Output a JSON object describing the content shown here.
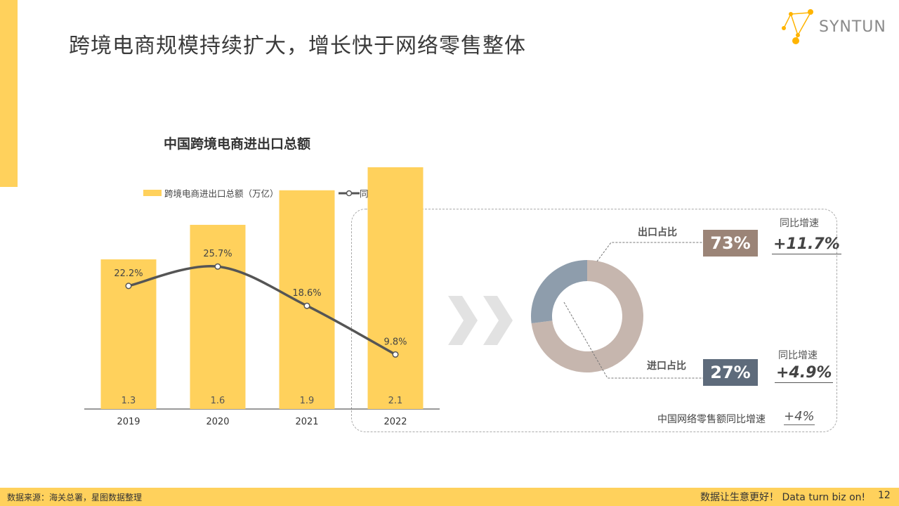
{
  "page": {
    "title": "跨境电商规模持续扩大，增长快于网络零售整体",
    "logo_text": "SYNTUN",
    "source": "数据来源：海关总署，星图数据整理",
    "slogan": "数据让生意更好！ Data  turn  biz  on!",
    "page_number": "12"
  },
  "colors": {
    "accent": "#FFD15C",
    "line": "#555555",
    "export": "#9B8477",
    "import": "#5E6B7B",
    "donut_export": "#C6B6AE",
    "donut_import": "#8E9DAC"
  },
  "chart_data": [
    {
      "type": "bar",
      "title": "中国跨境电商进出口总额",
      "categories": [
        "2019",
        "2020",
        "2021",
        "2022"
      ],
      "series": [
        {
          "name": "跨境电商进出口总额（万亿）",
          "type": "bar",
          "values": [
            1.3,
            1.6,
            1.9,
            2.1
          ]
        },
        {
          "name": "同比增速",
          "type": "line",
          "values": [
            22.2,
            25.7,
            18.6,
            9.8
          ],
          "labels": [
            "22.2%",
            "25.7%",
            "18.6%",
            "9.8%"
          ]
        }
      ],
      "grid": false,
      "legend": "top"
    },
    {
      "type": "pie",
      "slices": [
        {
          "name": "出口占比",
          "value": 73,
          "label": "73%",
          "yoy_caption": "同比增速",
          "yoy": "+11.7%"
        },
        {
          "name": "进口占比",
          "value": 27,
          "label": "27%",
          "yoy_caption": "同比增速",
          "yoy": "+4.9%"
        }
      ]
    }
  ],
  "retail": {
    "caption": "中国网络零售额同比增速",
    "value": "+4%"
  }
}
